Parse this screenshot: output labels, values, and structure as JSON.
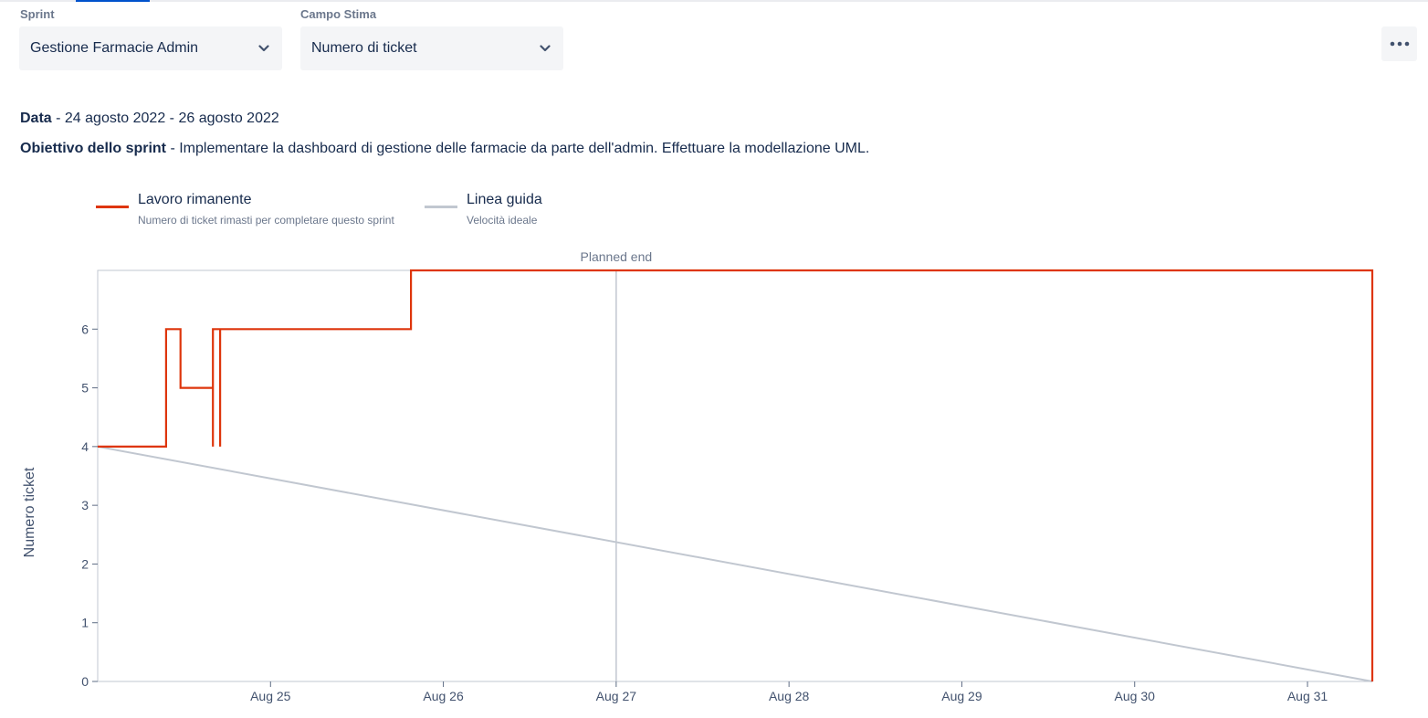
{
  "controls": {
    "sprint_label": "Sprint",
    "sprint_value": "Gestione Farmacie Admin",
    "estimate_label": "Campo Stima",
    "estimate_value": "Numero di ticket",
    "more_icon": "more-horizontal-icon"
  },
  "info": {
    "date_label": "Data",
    "date_value": " - 24 agosto 2022 - 26 agosto 2022",
    "goal_label": "Obiettivo dello sprint",
    "goal_value": " - Implementare la dashboard di gestione delle farmacie da parte dell'admin. Effettuare la modellazione UML."
  },
  "legend": {
    "remaining_title": "Lavoro rimanente",
    "remaining_desc": "Numero di ticket rimasti per completare questo sprint",
    "guide_title": "Linea guida",
    "guide_desc": "Velocità ideale"
  },
  "colors": {
    "remaining": "#de350b",
    "guide": "#c1c7d0"
  },
  "chart_data": {
    "type": "line",
    "ylabel": "Numero ticket",
    "ylim": [
      0,
      7
    ],
    "yticks": [
      0,
      1,
      2,
      3,
      4,
      5,
      6
    ],
    "xlim": [
      "2022-08-24",
      "2022-08-31 09:00"
    ],
    "xticks": [
      {
        "label": "Aug 25",
        "date": "2022-08-25"
      },
      {
        "label": "Aug 26",
        "date": "2022-08-26"
      },
      {
        "label": "Aug 27",
        "date": "2022-08-27"
      },
      {
        "label": "Aug 28",
        "date": "2022-08-28"
      },
      {
        "label": "Aug 29",
        "date": "2022-08-29"
      },
      {
        "label": "Aug 30",
        "date": "2022-08-30"
      },
      {
        "label": "Aug 31",
        "date": "2022-08-31"
      }
    ],
    "annotation": {
      "label": "Planned end",
      "date": "2022-08-27"
    },
    "grid": false,
    "series": [
      {
        "name": "Lavoro rimanente",
        "points": [
          {
            "x": "2022-08-24 00:00",
            "y": 4
          },
          {
            "x": "2022-08-24 09:30",
            "y": 4
          },
          {
            "x": "2022-08-24 09:30",
            "y": 6
          },
          {
            "x": "2022-08-24 11:30",
            "y": 6
          },
          {
            "x": "2022-08-24 11:30",
            "y": 5
          },
          {
            "x": "2022-08-24 16:00",
            "y": 5
          },
          {
            "x": "2022-08-24 16:00",
            "y": 4
          },
          {
            "x": "2022-08-24 16:00",
            "y": 6
          },
          {
            "x": "2022-08-24 17:00",
            "y": 6
          },
          {
            "x": "2022-08-24 17:00",
            "y": 4
          },
          {
            "x": "2022-08-24 17:00",
            "y": 6
          },
          {
            "x": "2022-08-25 19:30",
            "y": 6
          },
          {
            "x": "2022-08-25 19:30",
            "y": 7
          },
          {
            "x": "2022-08-31 09:00",
            "y": 7
          },
          {
            "x": "2022-08-31 09:00",
            "y": 0
          }
        ]
      },
      {
        "name": "Linea guida",
        "points": [
          {
            "x": "2022-08-24 00:00",
            "y": 4
          },
          {
            "x": "2022-08-31 09:00",
            "y": 0
          }
        ]
      }
    ]
  }
}
